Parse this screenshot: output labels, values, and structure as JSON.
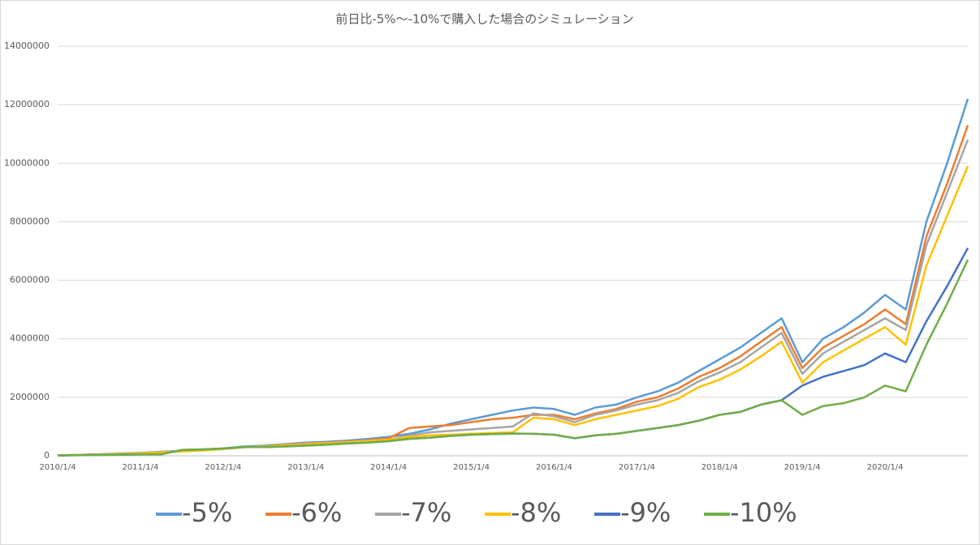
{
  "chart_data": {
    "type": "line",
    "title": "前日比-5%～-10%で購入した場合のシミュレーション",
    "categories": [
      "2010/1/4",
      null,
      null,
      null,
      "2011/1/4",
      null,
      null,
      null,
      "2012/1/4",
      null,
      null,
      null,
      "2013/1/4",
      null,
      null,
      null,
      "2014/1/4",
      null,
      null,
      null,
      "2015/1/4",
      null,
      null,
      null,
      "2016/1/4",
      null,
      null,
      null,
      "2017/1/4",
      null,
      null,
      null,
      "2018/1/4",
      null,
      null,
      null,
      "2019/1/4",
      null,
      null,
      null,
      "2020/1/4",
      null,
      null,
      null,
      null
    ],
    "ylim": [
      0,
      14000000
    ],
    "yticks": [
      0,
      2000000,
      4000000,
      6000000,
      8000000,
      10000000,
      12000000,
      14000000
    ],
    "grid": true,
    "legend": "bottom",
    "series": [
      {
        "name": "-5%",
        "color": "#5b9bd5",
        "values": [
          10000,
          30000,
          50000,
          80000,
          100000,
          140000,
          170000,
          200000,
          250000,
          320000,
          350000,
          400000,
          450000,
          480000,
          520000,
          580000,
          650000,
          750000,
          900000,
          1100000,
          1250000,
          1400000,
          1550000,
          1650000,
          1600000,
          1400000,
          1650000,
          1750000,
          2000000,
          2200000,
          2500000,
          2900000,
          3300000,
          3700000,
          4200000,
          4700000,
          3200000,
          4000000,
          4400000,
          4900000,
          5500000,
          5000000,
          8000000,
          10000000,
          12200000
        ]
      },
      {
        "name": "-6%",
        "color": "#ed7d31",
        "values": [
          10000,
          30000,
          50000,
          70000,
          90000,
          130000,
          160000,
          190000,
          240000,
          300000,
          330000,
          380000,
          420000,
          450000,
          490000,
          540000,
          600000,
          950000,
          1000000,
          1050000,
          1150000,
          1250000,
          1300000,
          1400000,
          1400000,
          1250000,
          1450000,
          1600000,
          1850000,
          2000000,
          2300000,
          2700000,
          3000000,
          3400000,
          3900000,
          4400000,
          3000000,
          3700000,
          4100000,
          4500000,
          5000000,
          4500000,
          7500000,
          9300000,
          11300000
        ]
      },
      {
        "name": "-7%",
        "color": "#a5a5a5",
        "values": [
          10000,
          30000,
          50000,
          70000,
          90000,
          130000,
          160000,
          190000,
          240000,
          300000,
          330000,
          370000,
          410000,
          440000,
          480000,
          520000,
          550000,
          700000,
          800000,
          850000,
          900000,
          950000,
          1000000,
          1450000,
          1350000,
          1150000,
          1400000,
          1550000,
          1750000,
          1900000,
          2150000,
          2550000,
          2850000,
          3200000,
          3700000,
          4200000,
          2800000,
          3500000,
          3900000,
          4300000,
          4700000,
          4300000,
          7200000,
          9000000,
          10800000
        ]
      },
      {
        "name": "-8%",
        "color": "#ffc000",
        "values": [
          10000,
          30000,
          40000,
          60000,
          80000,
          110000,
          150000,
          180000,
          230000,
          290000,
          320000,
          360000,
          400000,
          430000,
          460000,
          500000,
          550000,
          650000,
          700000,
          720000,
          750000,
          780000,
          800000,
          1300000,
          1250000,
          1050000,
          1250000,
          1400000,
          1550000,
          1700000,
          1950000,
          2350000,
          2600000,
          2950000,
          3400000,
          3900000,
          2500000,
          3200000,
          3600000,
          4000000,
          4400000,
          3800000,
          6500000,
          8200000,
          9900000
        ]
      },
      {
        "name": "-9%",
        "color": "#4472c4",
        "values": [
          10000,
          20000,
          30000,
          40000,
          50000,
          50000,
          200000,
          220000,
          250000,
          300000,
          300000,
          320000,
          350000,
          380000,
          420000,
          450000,
          500000,
          580000,
          620000,
          680000,
          720000,
          740000,
          760000,
          750000,
          720000,
          600000,
          700000,
          750000,
          850000,
          950000,
          1050000,
          1200000,
          1400000,
          1500000,
          1750000,
          1900000,
          2400000,
          2700000,
          2900000,
          3100000,
          3500000,
          3200000,
          4600000,
          5800000,
          7100000
        ]
      },
      {
        "name": "-10%",
        "color": "#70ad47",
        "values": [
          10000,
          20000,
          30000,
          40000,
          50000,
          50000,
          200000,
          220000,
          250000,
          300000,
          300000,
          320000,
          350000,
          380000,
          420000,
          450000,
          500000,
          580000,
          620000,
          680000,
          720000,
          740000,
          760000,
          750000,
          720000,
          600000,
          700000,
          750000,
          850000,
          950000,
          1050000,
          1200000,
          1400000,
          1500000,
          1750000,
          1900000,
          1400000,
          1700000,
          1800000,
          2000000,
          2400000,
          2200000,
          3800000,
          5200000,
          6700000
        ]
      }
    ]
  }
}
